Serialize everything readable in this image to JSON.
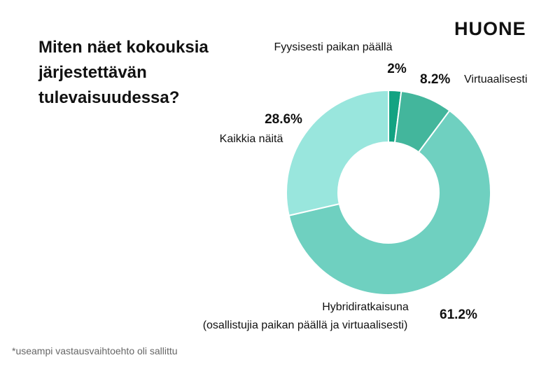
{
  "title_lines": [
    "Miten näet kokouksia",
    "järjestettävän",
    "tulevaisuudessa?"
  ],
  "brand": "HUONE",
  "footnote": "*useampi vastausvaihtoehto oli sallittu",
  "chart_data": {
    "type": "pie",
    "title": "Miten näet kokouksia järjestettävän tulevaisuudessa?",
    "slices": [
      {
        "label": "Fyysisesti paikan päällä",
        "value": 2,
        "value_label": "2%",
        "color": "#13a382"
      },
      {
        "label": "Virtuaalisesti",
        "value": 8.2,
        "value_label": "8.2%",
        "color": "#43b69c"
      },
      {
        "label": "Hybridiratkaisuna (osallistujia paikan päällä ja virtuaalisesti)",
        "label_lines": [
          "Hybridiratkaisuna",
          "(osallistujia paikan päällä ja virtuaalisesti)"
        ],
        "value": 61.2,
        "value_label": "61.2%",
        "color": "#6fd0c0"
      },
      {
        "label": "Kaikkia näitä",
        "value": 28.6,
        "value_label": "28.6%",
        "color": "#99e6dd"
      }
    ]
  }
}
